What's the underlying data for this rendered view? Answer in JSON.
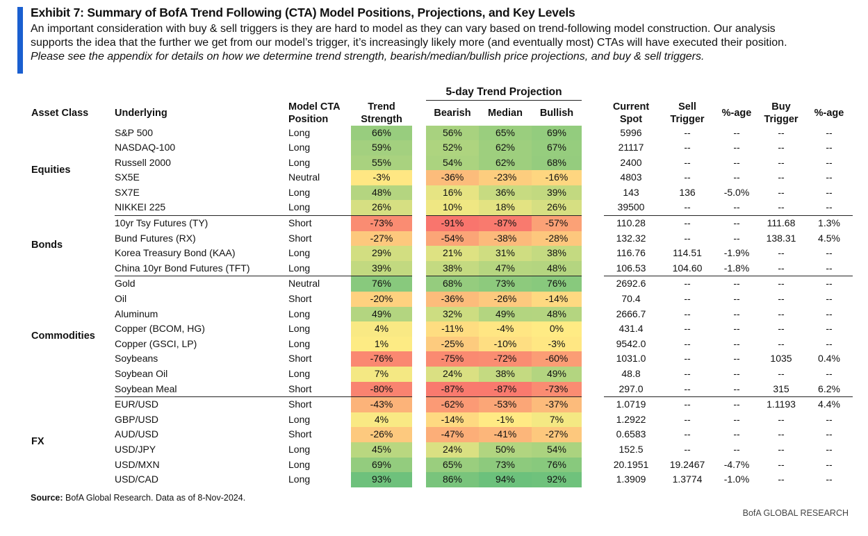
{
  "header": {
    "title": "Exhibit 7: Summary of BofA Trend Following (CTA) Model Positions, Projections, and Key Levels",
    "line1": "An important consideration with buy & sell triggers is they are hard to model as they can vary based on trend-following model construction.  Our analysis",
    "line2": "supports the idea that the further we get from our model’s trigger, it’s increasingly likely more (and eventually most) CTAs will have executed their position.",
    "line3": "Please see the appendix for details on how we determine trend strength, bearish/median/bullish price projections, and buy & sell triggers."
  },
  "columns": {
    "asset_class": "Asset Class",
    "underlying": "Underlying",
    "model_cta": "Model CTA",
    "position": "Position",
    "trend": "Trend",
    "strength": "Strength",
    "projection_group": "5-day Trend Projection",
    "bearish": "Bearish",
    "median": "Median",
    "bullish": "Bullish",
    "current": "Current",
    "spot": "Spot",
    "sell": "Sell",
    "sell_trigger": "Trigger",
    "sell_pct": "%-age",
    "buy": "Buy",
    "buy_trigger": "Trigger",
    "buy_pct": "%-age"
  },
  "groups": [
    {
      "asset_class": "Equities",
      "rows": [
        {
          "underlying": "S&P 500",
          "position": "Long",
          "strength": "66%",
          "bearish": "56%",
          "median": "65%",
          "bullish": "69%",
          "spot": "5996",
          "sell_trigger": "--",
          "sell_pct": "--",
          "buy_trigger": "--",
          "buy_pct": "--"
        },
        {
          "underlying": "NASDAQ-100",
          "position": "Long",
          "strength": "59%",
          "bearish": "52%",
          "median": "62%",
          "bullish": "67%",
          "spot": "21117",
          "sell_trigger": "--",
          "sell_pct": "--",
          "buy_trigger": "--",
          "buy_pct": "--"
        },
        {
          "underlying": "Russell 2000",
          "position": "Long",
          "strength": "55%",
          "bearish": "54%",
          "median": "62%",
          "bullish": "68%",
          "spot": "2400",
          "sell_trigger": "--",
          "sell_pct": "--",
          "buy_trigger": "--",
          "buy_pct": "--"
        },
        {
          "underlying": "SX5E",
          "position": "Neutral",
          "strength": "-3%",
          "bearish": "-36%",
          "median": "-23%",
          "bullish": "-16%",
          "spot": "4803",
          "sell_trigger": "--",
          "sell_pct": "--",
          "buy_trigger": "--",
          "buy_pct": "--"
        },
        {
          "underlying": "SX7E",
          "position": "Long",
          "strength": "48%",
          "bearish": "16%",
          "median": "36%",
          "bullish": "39%",
          "spot": "143",
          "sell_trigger": "136",
          "sell_pct": "-5.0%",
          "buy_trigger": "--",
          "buy_pct": "--"
        },
        {
          "underlying": "NIKKEI 225",
          "position": "Long",
          "strength": "26%",
          "bearish": "10%",
          "median": "18%",
          "bullish": "26%",
          "spot": "39500",
          "sell_trigger": "--",
          "sell_pct": "--",
          "buy_trigger": "--",
          "buy_pct": "--"
        }
      ]
    },
    {
      "asset_class": "Bonds",
      "rows": [
        {
          "underlying": "10yr Tsy Futures (TY)",
          "position": "Short",
          "strength": "-73%",
          "bearish": "-91%",
          "median": "-87%",
          "bullish": "-57%",
          "spot": "110.28",
          "sell_trigger": "--",
          "sell_pct": "--",
          "buy_trigger": "111.68",
          "buy_pct": "1.3%"
        },
        {
          "underlying": "Bund Futures (RX)",
          "position": "Short",
          "strength": "-27%",
          "bearish": "-54%",
          "median": "-38%",
          "bullish": "-28%",
          "spot": "132.32",
          "sell_trigger": "--",
          "sell_pct": "--",
          "buy_trigger": "138.31",
          "buy_pct": "4.5%"
        },
        {
          "underlying": "Korea Treasury Bond (KAA)",
          "position": "Long",
          "strength": "29%",
          "bearish": "21%",
          "median": "31%",
          "bullish": "38%",
          "spot": "116.76",
          "sell_trigger": "114.51",
          "sell_pct": "-1.9%",
          "buy_trigger": "--",
          "buy_pct": "--"
        },
        {
          "underlying": "China 10yr Bond Futures (TFT)",
          "position": "Long",
          "strength": "39%",
          "bearish": "38%",
          "median": "47%",
          "bullish": "48%",
          "spot": "106.53",
          "sell_trigger": "104.60",
          "sell_pct": "-1.8%",
          "buy_trigger": "--",
          "buy_pct": "--"
        }
      ]
    },
    {
      "asset_class": "Commodities",
      "rows": [
        {
          "underlying": "Gold",
          "position": "Neutral",
          "strength": "76%",
          "bearish": "68%",
          "median": "73%",
          "bullish": "76%",
          "spot": "2692.6",
          "sell_trigger": "--",
          "sell_pct": "--",
          "buy_trigger": "--",
          "buy_pct": "--"
        },
        {
          "underlying": "Oil",
          "position": "Short",
          "strength": "-20%",
          "bearish": "-36%",
          "median": "-26%",
          "bullish": "-14%",
          "spot": "70.4",
          "sell_trigger": "--",
          "sell_pct": "--",
          "buy_trigger": "--",
          "buy_pct": "--"
        },
        {
          "underlying": "Aluminum",
          "position": "Long",
          "strength": "49%",
          "bearish": "32%",
          "median": "49%",
          "bullish": "48%",
          "spot": "2666.7",
          "sell_trigger": "--",
          "sell_pct": "--",
          "buy_trigger": "--",
          "buy_pct": "--"
        },
        {
          "underlying": "Copper (BCOM, HG)",
          "position": "Long",
          "strength": "4%",
          "bearish": "-11%",
          "median": "-4%",
          "bullish": "0%",
          "spot": "431.4",
          "sell_trigger": "--",
          "sell_pct": "--",
          "buy_trigger": "--",
          "buy_pct": "--"
        },
        {
          "underlying": "Copper (GSCI, LP)",
          "position": "Long",
          "strength": "1%",
          "bearish": "-25%",
          "median": "-10%",
          "bullish": "-3%",
          "spot": "9542.0",
          "sell_trigger": "--",
          "sell_pct": "--",
          "buy_trigger": "--",
          "buy_pct": "--"
        },
        {
          "underlying": "Soybeans",
          "position": "Short",
          "strength": "-76%",
          "bearish": "-75%",
          "median": "-72%",
          "bullish": "-60%",
          "spot": "1031.0",
          "sell_trigger": "--",
          "sell_pct": "--",
          "buy_trigger": "1035",
          "buy_pct": "0.4%"
        },
        {
          "underlying": "Soybean Oil",
          "position": "Long",
          "strength": "7%",
          "bearish": "24%",
          "median": "38%",
          "bullish": "49%",
          "spot": "48.8",
          "sell_trigger": "--",
          "sell_pct": "--",
          "buy_trigger": "--",
          "buy_pct": "--"
        },
        {
          "underlying": "Soybean Meal",
          "position": "Short",
          "strength": "-80%",
          "bearish": "-87%",
          "median": "-87%",
          "bullish": "-73%",
          "spot": "297.0",
          "sell_trigger": "--",
          "sell_pct": "--",
          "buy_trigger": "315",
          "buy_pct": "6.2%"
        }
      ]
    },
    {
      "asset_class": "FX",
      "rows": [
        {
          "underlying": "EUR/USD",
          "position": "Short",
          "strength": "-43%",
          "bearish": "-62%",
          "median": "-53%",
          "bullish": "-37%",
          "spot": "1.0719",
          "sell_trigger": "--",
          "sell_pct": "--",
          "buy_trigger": "1.1193",
          "buy_pct": "4.4%"
        },
        {
          "underlying": "GBP/USD",
          "position": "Long",
          "strength": "4%",
          "bearish": "-14%",
          "median": "-1%",
          "bullish": "7%",
          "spot": "1.2922",
          "sell_trigger": "--",
          "sell_pct": "--",
          "buy_trigger": "--",
          "buy_pct": "--"
        },
        {
          "underlying": "AUD/USD",
          "position": "Short",
          "strength": "-26%",
          "bearish": "-47%",
          "median": "-41%",
          "bullish": "-27%",
          "spot": "0.6583",
          "sell_trigger": "--",
          "sell_pct": "--",
          "buy_trigger": "--",
          "buy_pct": "--"
        },
        {
          "underlying": "USD/JPY",
          "position": "Long",
          "strength": "45%",
          "bearish": "24%",
          "median": "50%",
          "bullish": "54%",
          "spot": "152.5",
          "sell_trigger": "--",
          "sell_pct": "--",
          "buy_trigger": "--",
          "buy_pct": "--"
        },
        {
          "underlying": "USD/MXN",
          "position": "Long",
          "strength": "69%",
          "bearish": "65%",
          "median": "73%",
          "bullish": "76%",
          "spot": "20.1951",
          "sell_trigger": "19.2467",
          "sell_pct": "-4.7%",
          "buy_trigger": "--",
          "buy_pct": "--"
        },
        {
          "underlying": "USD/CAD",
          "position": "Long",
          "strength": "93%",
          "bearish": "86%",
          "median": "94%",
          "bullish": "92%",
          "spot": "1.3909",
          "sell_trigger": "1.3774",
          "sell_pct": "-1.0%",
          "buy_trigger": "--",
          "buy_pct": "--"
        }
      ]
    }
  ],
  "heatmap_colors": {
    "negative_extreme": "#f8696b",
    "neutral": "#ffeb84",
    "positive_extreme": "#63be7b"
  },
  "footer": {
    "source_label": "Source:",
    "source_text": " BofA Global Research.  Data as of 8-Nov-2024.",
    "brand": "BofA GLOBAL RESEARCH"
  }
}
